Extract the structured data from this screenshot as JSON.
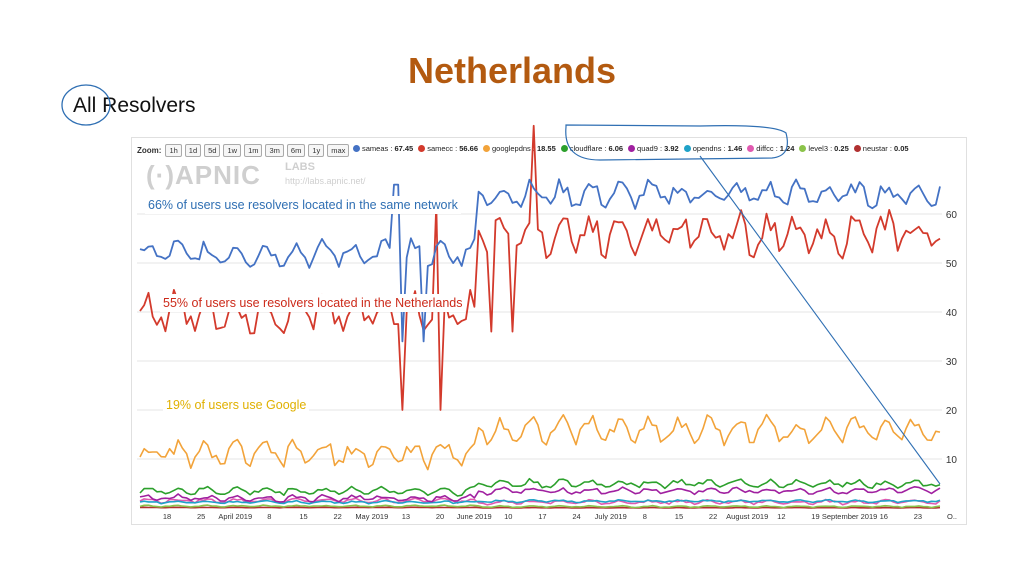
{
  "slide": {
    "title": "Netherlands",
    "subtitle": "All Resolvers"
  },
  "zoom": {
    "label": "Zoom:",
    "buttons": [
      "1h",
      "1d",
      "5d",
      "1w",
      "1m",
      "3m",
      "6m",
      "1y",
      "max"
    ]
  },
  "watermark": {
    "brand": "(·)APNIC",
    "labs": "LABS",
    "url": "http://labs.apnic.net/"
  },
  "annotations": {
    "same_network": "66% of users use resolvers located in the same network",
    "netherlands": "55% of users use resolvers located in the Netherlands",
    "google": "19% of users use Google"
  },
  "chart_data": {
    "type": "line",
    "x_tick_labels": [
      "18",
      "25",
      "April 2019",
      "8",
      "15",
      "22",
      "May 2019",
      "13",
      "20",
      "June 2019",
      "10",
      "17",
      "24",
      "July 2019",
      "8",
      "15",
      "22",
      "August 2019",
      "12",
      "19",
      "September 2019",
      "16",
      "23",
      "O.."
    ],
    "y_ticks": [
      10,
      20,
      30,
      40,
      50,
      60
    ],
    "ylim": [
      0,
      70
    ],
    "series": [
      {
        "name": "sameas",
        "value": "67.45",
        "color": "#4472c4",
        "base": 52,
        "step_to": 64,
        "noise": 3
      },
      {
        "name": "samecc",
        "value": "56.66",
        "color": "#d33a2c",
        "base": 40,
        "step_to": 56,
        "noise": 5
      },
      {
        "name": "googlepdns",
        "value": "18.55",
        "color": "#f2a33a",
        "base": 11,
        "step_to": 16,
        "noise": 3
      },
      {
        "name": "cloudflare",
        "value": "6.06",
        "color": "#2ca02c",
        "base": 3.5,
        "step_to": 5,
        "noise": 1
      },
      {
        "name": "quad9",
        "value": "3.92",
        "color": "#a020a0",
        "base": 2,
        "step_to": 3.5,
        "noise": 0.8
      },
      {
        "name": "opendns",
        "value": "1.46",
        "color": "#1fa2c8",
        "base": 1.2,
        "step_to": 1.4,
        "noise": 0.3
      },
      {
        "name": "diffcc",
        "value": "1.24",
        "color": "#e05ab0",
        "base": 1.5,
        "step_to": 1.2,
        "noise": 0.5
      },
      {
        "name": "level3",
        "value": "0.25",
        "color": "#8bc34a",
        "base": 0.4,
        "step_to": 0.3,
        "noise": 0.2
      },
      {
        "name": "neustar",
        "value": "0.05",
        "color": "#b03030",
        "base": 0.1,
        "step_to": 0.05,
        "noise": 0.05
      }
    ]
  }
}
